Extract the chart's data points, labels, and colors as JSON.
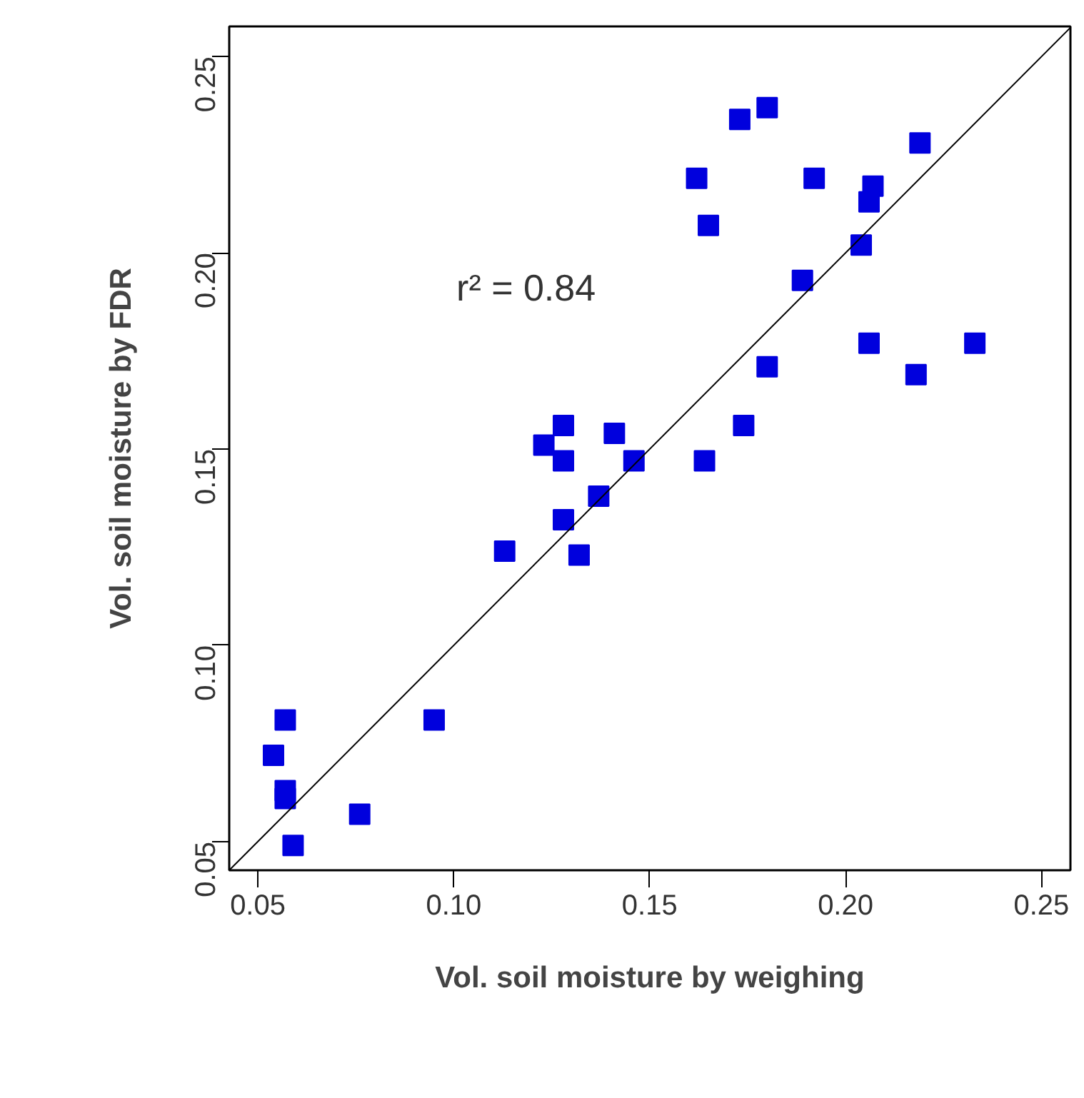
{
  "chart_data": {
    "type": "scatter",
    "xlabel": "Vol. soil moisture by weighing",
    "ylabel": "Vol. soil moisture by FDR",
    "annotations": [
      "r² = 0.84"
    ],
    "xlim": [
      0.0427,
      0.2574
    ],
    "ylim": [
      0.0427,
      0.2577
    ],
    "xticks": [
      {
        "value": 0.05,
        "label": "0.05"
      },
      {
        "value": 0.1,
        "label": "0.10"
      },
      {
        "value": 0.15,
        "label": "0.15"
      },
      {
        "value": 0.2,
        "label": "0.20"
      },
      {
        "value": 0.25,
        "label": "0.25"
      }
    ],
    "yticks": [
      {
        "value": 0.05,
        "label": "0.05"
      },
      {
        "value": 0.1,
        "label": "0.10"
      },
      {
        "value": 0.15,
        "label": "0.15"
      },
      {
        "value": 0.2,
        "label": "0.20"
      },
      {
        "value": 0.25,
        "label": "0.25"
      }
    ],
    "grid": false,
    "series": [
      {
        "marker": "square",
        "color": "#0000dd",
        "x": [
          0.18,
          0.173,
          0.219,
          0.162,
          0.192,
          0.207,
          0.206,
          0.165,
          0.204,
          0.189,
          0.206,
          0.233,
          0.218,
          0.18,
          0.174,
          0.164,
          0.128,
          0.123,
          0.128,
          0.141,
          0.146,
          0.137,
          0.128,
          0.113,
          0.132,
          0.057,
          0.054,
          0.057,
          0.057,
          0.059,
          0.076,
          0.095
        ],
        "values": [
          0.237,
          0.234,
          0.228,
          0.219,
          0.219,
          0.217,
          0.213,
          0.207,
          0.202,
          0.193,
          0.177,
          0.177,
          0.169,
          0.171,
          0.156,
          0.147,
          0.156,
          0.151,
          0.147,
          0.154,
          0.147,
          0.138,
          0.132,
          0.124,
          0.123,
          0.081,
          0.072,
          0.063,
          0.061,
          0.049,
          0.057,
          0.081
        ]
      },
      {
        "type": "line",
        "marker": "none",
        "color": "#000000",
        "line_style": "solid",
        "x": [
          0.0427,
          0.2574
        ],
        "values": [
          0.0427,
          0.2574
        ]
      }
    ]
  }
}
